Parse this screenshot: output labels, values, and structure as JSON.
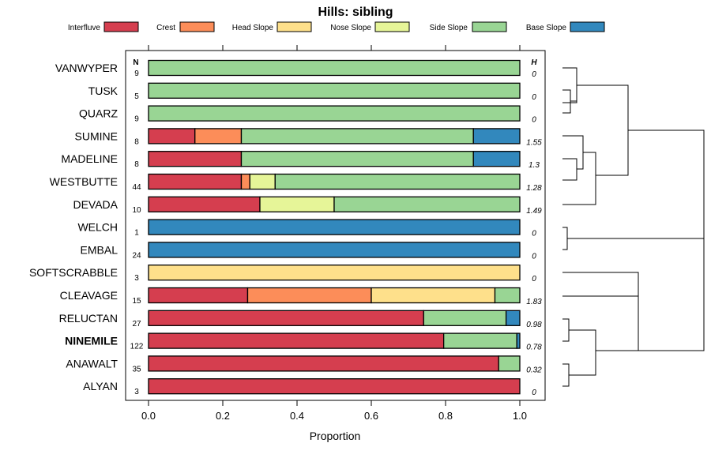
{
  "chart_data": {
    "type": "bar",
    "stacked": true,
    "orientation": "horizontal",
    "title": "Hills: sibling",
    "xlabel": "Proportion",
    "ylabel": "",
    "xlim": [
      0,
      1
    ],
    "x_ticks": [
      "0.0",
      "0.2",
      "0.4",
      "0.6",
      "0.8",
      "1.0"
    ],
    "x_tick_values": [
      0,
      0.2,
      0.4,
      0.6,
      0.8,
      1.0
    ],
    "n_header": "N",
    "h_header": "H",
    "highlight": "NINEMILE",
    "legend": [
      {
        "name": "Interfluve",
        "color": "#d53e4f"
      },
      {
        "name": "Crest",
        "color": "#fc8d59"
      },
      {
        "name": "Head Slope",
        "color": "#fee08b"
      },
      {
        "name": "Nose Slope",
        "color": "#e6f598"
      },
      {
        "name": "Side Slope",
        "color": "#99d594"
      },
      {
        "name": "Base Slope",
        "color": "#3288bd"
      }
    ],
    "rows": [
      {
        "label": "VANWYPER",
        "n": "9",
        "h": "0",
        "values": [
          0,
          0,
          0,
          0,
          1,
          0
        ]
      },
      {
        "label": "TUSK",
        "n": "5",
        "h": "0",
        "values": [
          0,
          0,
          0,
          0,
          1,
          0
        ]
      },
      {
        "label": "QUARZ",
        "n": "9",
        "h": "0",
        "values": [
          0,
          0,
          0,
          0,
          1,
          0
        ]
      },
      {
        "label": "SUMINE",
        "n": "8",
        "h": "1.55",
        "values": [
          0.125,
          0.125,
          0,
          0,
          0.625,
          0.125
        ]
      },
      {
        "label": "MADELINE",
        "n": "8",
        "h": "1.3",
        "values": [
          0.25,
          0,
          0,
          0,
          0.625,
          0.125
        ]
      },
      {
        "label": "WESTBUTTE",
        "n": "44",
        "h": "1.28",
        "values": [
          0.25,
          0.023,
          0,
          0.068,
          0.659,
          0
        ]
      },
      {
        "label": "DEVADA",
        "n": "10",
        "h": "1.49",
        "values": [
          0.3,
          0,
          0,
          0.2,
          0.5,
          0
        ]
      },
      {
        "label": "WELCH",
        "n": "1",
        "h": "0",
        "values": [
          0,
          0,
          0,
          0,
          0,
          1
        ]
      },
      {
        "label": "EMBAL",
        "n": "24",
        "h": "0",
        "values": [
          0,
          0,
          0,
          0,
          0,
          1
        ]
      },
      {
        "label": "SOFTSCRABBLE",
        "n": "3",
        "h": "0",
        "values": [
          0,
          0,
          1,
          0,
          0,
          0
        ]
      },
      {
        "label": "CLEAVAGE",
        "n": "15",
        "h": "1.83",
        "values": [
          0.267,
          0.333,
          0.333,
          0,
          0.067,
          0
        ]
      },
      {
        "label": "RELUCTAN",
        "n": "27",
        "h": "0.98",
        "values": [
          0.741,
          0,
          0,
          0,
          0.222,
          0.037
        ]
      },
      {
        "label": "NINEMILE",
        "n": "122",
        "h": "0.78",
        "values": [
          0.795,
          0,
          0,
          0,
          0.197,
          0.008
        ]
      },
      {
        "label": "ANAWALT",
        "n": "35",
        "h": "0.32",
        "values": [
          0.943,
          0,
          0,
          0,
          0.057,
          0
        ]
      },
      {
        "label": "ALYAN",
        "n": "3",
        "h": "0",
        "values": [
          1,
          0,
          0,
          0,
          0,
          0
        ]
      }
    ]
  }
}
